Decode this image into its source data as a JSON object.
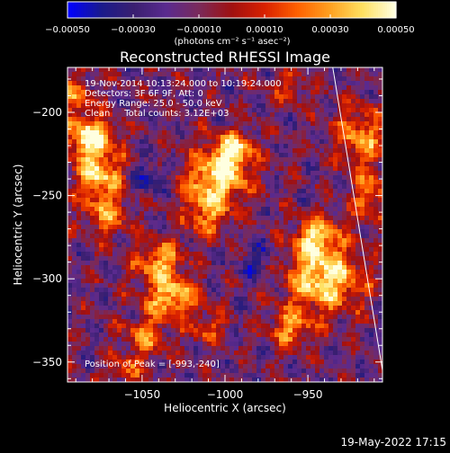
{
  "chart_data": {
    "type": "heatmap",
    "title": "Reconstructed RHESSI Image",
    "xlabel": "Heliocentric X (arcsec)",
    "ylabel": "Heliocentric Y (arcsec)",
    "xlim": [
      -1095,
      -905
    ],
    "ylim": [
      -362,
      -173
    ],
    "x_ticks": [
      -1050,
      -1000,
      -950
    ],
    "y_ticks": [
      -200,
      -250,
      -300,
      -350
    ],
    "x_tick_labels": [
      "−1050",
      "−1000",
      "−950"
    ],
    "y_tick_labels": [
      "−200",
      "−250",
      "−300",
      "−350"
    ],
    "colorbar": {
      "min": -0.0005,
      "max": 0.0005,
      "ticks": [
        -0.0005,
        -0.0003,
        -0.0001,
        0.0001,
        0.0003,
        0.0005
      ],
      "tick_labels": [
        "−0.00050",
        "−0.00030",
        "−0.00010",
        "0.00010",
        "0.00030",
        "0.00050"
      ],
      "unit_label": "(photons cm⁻² s⁻¹ asec⁻²)",
      "colors": [
        "#0000ff",
        "#1a1a8c",
        "#3a1f70",
        "#5a2a8f",
        "#7a2a5a",
        "#a01010",
        "#d82000",
        "#ff6000",
        "#ffa020",
        "#ffe060",
        "#ffffe0"
      ]
    },
    "annotations": [
      "19-Nov-2014 10:13:24.000 to 10:19:24.000",
      "Detectors: 3F 6F 9F, Att: 0",
      "Energy Range: 25.0 - 50.0 keV",
      "Clean     Total counts: 3.12E+03",
      "Position of Peak = [-993,-240]"
    ],
    "peak": [
      -993,
      -240
    ],
    "limb_line": {
      "x": [
        -935,
        -905
      ],
      "y": [
        -173,
        -355
      ]
    },
    "sources": [
      {
        "x": -1082,
        "y": -215,
        "sx": 11,
        "sy": 9,
        "amp": 1.0
      },
      {
        "x": -1076,
        "y": -238,
        "sx": 10,
        "sy": 10,
        "amp": 0.85
      },
      {
        "x": -1072,
        "y": -262,
        "sx": 9,
        "sy": 9,
        "amp": 0.6
      },
      {
        "x": -1090,
        "y": -190,
        "sx": 8,
        "sy": 8,
        "amp": 0.55
      },
      {
        "x": -1005,
        "y": -240,
        "sx": 14,
        "sy": 12,
        "amp": 0.95
      },
      {
        "x": -995,
        "y": -222,
        "sx": 9,
        "sy": 8,
        "amp": 0.8
      },
      {
        "x": -1012,
        "y": -262,
        "sx": 9,
        "sy": 9,
        "amp": 0.55
      },
      {
        "x": -1040,
        "y": -290,
        "sx": 10,
        "sy": 9,
        "amp": 0.75
      },
      {
        "x": -1032,
        "y": -312,
        "sx": 11,
        "sy": 9,
        "amp": 0.85
      },
      {
        "x": -1048,
        "y": -335,
        "sx": 9,
        "sy": 8,
        "amp": 0.6
      },
      {
        "x": -1010,
        "y": -330,
        "sx": 8,
        "sy": 7,
        "amp": 0.45
      },
      {
        "x": -940,
        "y": -300,
        "sx": 16,
        "sy": 14,
        "amp": 1.0
      },
      {
        "x": -945,
        "y": -275,
        "sx": 9,
        "sy": 9,
        "amp": 0.8
      },
      {
        "x": -960,
        "y": -330,
        "sx": 9,
        "sy": 8,
        "amp": 0.65
      },
      {
        "x": -918,
        "y": -215,
        "sx": 11,
        "sy": 12,
        "amp": 0.7
      },
      {
        "x": -912,
        "y": -250,
        "sx": 8,
        "sy": 10,
        "amp": 0.6
      },
      {
        "x": -960,
        "y": -185,
        "sx": 9,
        "sy": 7,
        "amp": 0.35
      },
      {
        "x": -1045,
        "y": -240,
        "sx": 7,
        "sy": 7,
        "amp": -0.45
      },
      {
        "x": -980,
        "y": -290,
        "sx": 7,
        "sy": 8,
        "amp": -0.4
      },
      {
        "x": -1060,
        "y": -355,
        "sx": 8,
        "sy": 6,
        "amp": 0.45
      }
    ]
  },
  "footer": {
    "timestamp": "19-May-2022 17:15"
  }
}
